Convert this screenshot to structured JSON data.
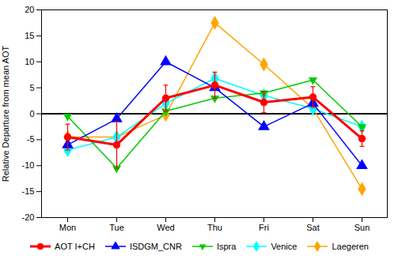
{
  "chart_data": {
    "type": "line",
    "categories": [
      "Mon",
      "Tue",
      "Wed",
      "Thu",
      "Fri",
      "Sat",
      "Sun"
    ],
    "series": [
      {
        "name": "AOT I+CH",
        "color": "red",
        "marker": "circle",
        "values": [
          -4.5,
          -6.0,
          3.0,
          5.5,
          2.2,
          3.2,
          -4.8
        ],
        "yerr": [
          2.5,
          4.5,
          2.5,
          2.5,
          2.0,
          2.0,
          1.5
        ]
      },
      {
        "name": "ISDGM_CNR",
        "color": "blue",
        "marker": "triangle-up",
        "values": [
          -6.0,
          -1.0,
          10.0,
          5.0,
          -2.5,
          2.0,
          -10.0
        ]
      },
      {
        "name": "Ispra",
        "color": "#00cc00",
        "marker": "triangle-down",
        "values": [
          -0.5,
          -10.5,
          0.5,
          3.0,
          4.0,
          6.5,
          -2.5
        ]
      },
      {
        "name": "Venice",
        "color": "cyan",
        "marker": "diamond",
        "values": [
          -7.0,
          -4.5,
          2.0,
          6.8,
          3.5,
          1.0,
          -2.5
        ]
      },
      {
        "name": "Laegeren",
        "color": "orange",
        "marker": "diamond",
        "values": [
          -4.5,
          -4.5,
          -0.2,
          17.5,
          9.5,
          1.0,
          -14.5
        ]
      }
    ],
    "ylabel": "Relative Departure from mean AOT",
    "ylim": [
      -20,
      20
    ],
    "yticks": [
      -20,
      -15,
      -10,
      -5,
      0,
      5,
      10,
      15,
      20
    ],
    "grid": false,
    "legend": "bottom"
  }
}
